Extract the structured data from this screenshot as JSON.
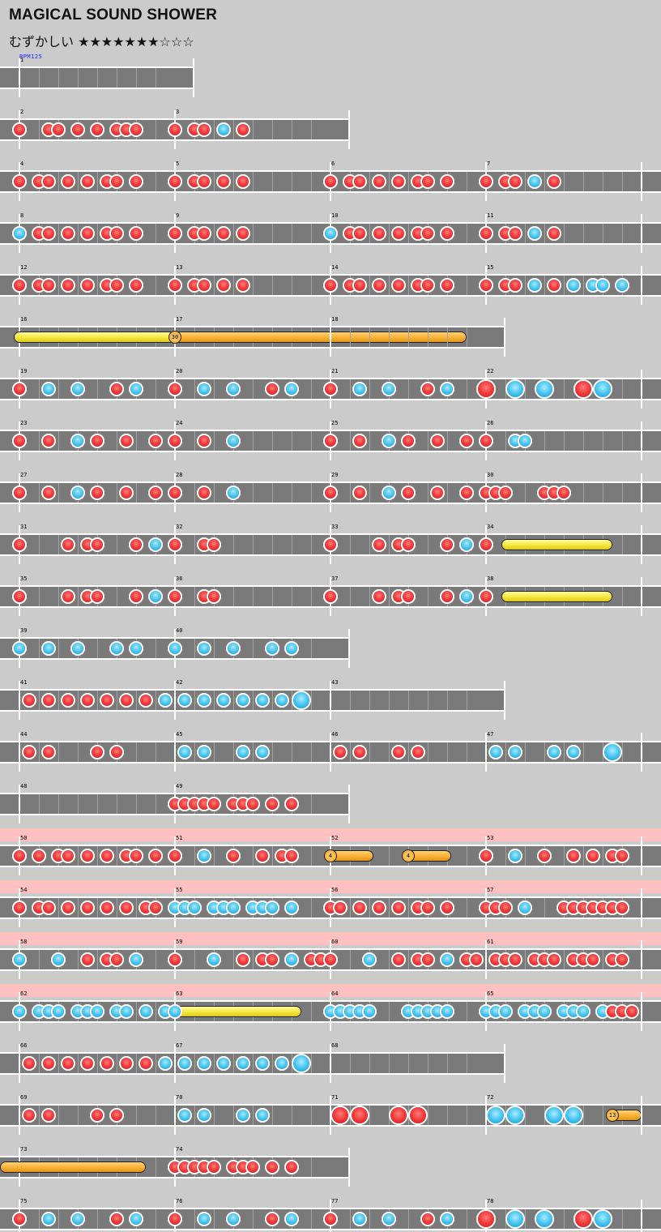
{
  "song": {
    "title": "MAGICAL SOUND SHOWER",
    "difficulty_label": "むずかしい",
    "stars": "★★★★★★★☆☆☆",
    "bpm": "BPM125"
  },
  "legend": {
    "don": "#f03a3a",
    "ka": "#40c0ef",
    "drumroll": "#f4e83a",
    "balloon": "#f9b233",
    "gogo_band": "#ffc0c0"
  },
  "measures": [
    {
      "n": 1,
      "beats": 4,
      "notes": []
    },
    {
      "n": 2,
      "beats": 8,
      "notes": "d0 d1.5 d2 d3 d4 d5 d5.5 d6"
    },
    {
      "n": 3,
      "beats": 8,
      "notes": "d0 d1 d1.5 k2.5 d3.5"
    },
    {
      "n": 4,
      "beats": 8,
      "notes": "d0 d1 d1.5 d2.5 d3.5 d4.5 d5 d6"
    },
    {
      "n": 5,
      "beats": 8,
      "notes": "d0 d1 d1.5 d2.5 d3.5"
    },
    {
      "n": 6,
      "beats": 8,
      "notes": "d0 d1 d1.5 d2.5 d3.5 d4.5 d5 d6"
    },
    {
      "n": 7,
      "beats": 8,
      "notes": "d0 d1 d1.5 k2.5 d3.5"
    },
    {
      "n": 8,
      "beats": 8,
      "notes": "k0 d1 d1.5 d2.5 d3.5 d4.5 d5 d6"
    },
    {
      "n": 9,
      "beats": 8,
      "notes": "d0 d1 d1.5 d2.5 d3.5"
    },
    {
      "n": 10,
      "beats": 8,
      "notes": "k0 d1 d1.5 d2.5 d3.5 d4.5 d5 d6"
    },
    {
      "n": 11,
      "beats": 8,
      "notes": "d0 d1 d1.5 k2.5 d3.5"
    },
    {
      "n": 12,
      "beats": 8,
      "notes": "d0 d1 d1.5 d2.5 d3.5 d4.5 d5 d6"
    },
    {
      "n": 13,
      "beats": 8,
      "notes": "d0 d1 d1.5 d2.5 d3.5"
    },
    {
      "n": 14,
      "beats": 8,
      "notes": "d0 d1 d1.5 d2.5 d3.5 d4.5 d5 d6"
    },
    {
      "n": 15,
      "beats": 8,
      "notes": "d0 d1 d1.5 k2.5 d3.5 k4.5 k5.5 k6 k7"
    },
    {
      "n": 16,
      "beats": 8,
      "rolls": [
        {
          "kind": "drumroll",
          "from": 0,
          "to": 7.7
        }
      ]
    },
    {
      "n": 17,
      "beats": 8,
      "balloon": {
        "at": 0,
        "hits": "30",
        "to": 15
      }
    },
    {
      "n": 18,
      "beats": 8
    },
    {
      "n": 19,
      "beats": 8,
      "notes": "d0 k1.5 k3 d5 k6"
    },
    {
      "n": 20,
      "beats": 8,
      "notes": "d0 k1.5 k3 d5 k6"
    },
    {
      "n": 21,
      "beats": 8,
      "notes": "d0 k1.5 k3 d5 k6"
    },
    {
      "n": 22,
      "beats": 8,
      "notes": "D0 K1.5 K3 D5 K6"
    },
    {
      "n": 23,
      "beats": 8,
      "notes": "d0 d1.5 k3 d4 d5.5 d7"
    },
    {
      "n": 24,
      "beats": 8,
      "notes": "d0 d1.5 k3"
    },
    {
      "n": 25,
      "beats": 8,
      "notes": "d0 d1.5 k3 d4 d5.5 d7"
    },
    {
      "n": 26,
      "beats": 8,
      "notes": "d0 k1.5 k2"
    },
    {
      "n": 27,
      "beats": 8,
      "notes": "d0 d1.5 k3 d4 d5.5 d7"
    },
    {
      "n": 28,
      "beats": 8,
      "notes": "d0 d1.5 k3"
    },
    {
      "n": 29,
      "beats": 8,
      "notes": "d0 d1.5 k3 d4 d5.5 d7"
    },
    {
      "n": 30,
      "beats": 8,
      "notes": "d0 d0.5 d1 d3 d3.5 d4"
    },
    {
      "n": 31,
      "beats": 8,
      "notes": "d0 d2.5 d3.5 d4 d6 k7"
    },
    {
      "n": 32,
      "beats": 8,
      "notes": "d0 d1.5 d2"
    },
    {
      "n": 33,
      "beats": 8,
      "notes": "d0 d2.5 d3.5 d4 d6 k7"
    },
    {
      "n": 34,
      "beats": 8,
      "notes": "d0",
      "rolls": [
        {
          "kind": "drumroll",
          "from": 1.1,
          "to": 6.2
        }
      ]
    },
    {
      "n": 35,
      "beats": 8,
      "notes": "d0 d2.5 d3.5 d4 d6 k7"
    },
    {
      "n": 36,
      "beats": 8,
      "notes": "d0 d1.5 d2"
    },
    {
      "n": 37,
      "beats": 8,
      "notes": "d0 d2.5 d3.5 d4 d6 k7"
    },
    {
      "n": 38,
      "beats": 8,
      "notes": "d0",
      "rolls": [
        {
          "kind": "drumroll",
          "from": 1.1,
          "to": 6.2
        }
      ]
    },
    {
      "n": 39,
      "beats": 8,
      "notes": "k0 k1.5 k3 k5 k6"
    },
    {
      "n": 40,
      "beats": 8,
      "notes": "k0 k1.5 k3 k5 k6"
    },
    {
      "n": 41,
      "beats": 8,
      "notes": "d0.5 d1.5 d2.5 d3.5 d4.5 d5.5 d6.5 k7.5"
    },
    {
      "n": 42,
      "beats": 8,
      "notes": "k0.5 k1.5 k2.5 k3.5 k4.5 k5.5 K6.5"
    },
    {
      "n": 43,
      "beats": 8
    },
    {
      "n": 44,
      "beats": 8,
      "notes": "d0.5 d1.5 d4 d5"
    },
    {
      "n": 45,
      "beats": 8,
      "notes": "k0.5 k1.5 k3.5 k4.5"
    },
    {
      "n": 46,
      "beats": 8,
      "notes": "d0.5 d1.5 d3.5 d4.5"
    },
    {
      "n": 47,
      "beats": 8,
      "notes": "k0.5 k1.5 k3.5 k4.5 K6.5"
    },
    {
      "n": 48,
      "beats": 8
    },
    {
      "n": 49,
      "beats": 8,
      "notes": "d0 d0.5 d1 d1.5 d2 d3 d3.5 d4 d5 d6"
    },
    {
      "n": 50,
      "beats": 8,
      "gogo": true,
      "notes": "d0 d1 d2 d2.5 d3.5 d4.5 d5.5 d6 d7"
    },
    {
      "n": 51,
      "beats": 8,
      "notes": "d0 k1.5 d3 d4.5 d5.5 d6"
    },
    {
      "n": 52,
      "beats": 8,
      "balloons": [
        {
          "at": 0,
          "hits": "4",
          "to": 2.2
        },
        {
          "at": 4,
          "hits": "4",
          "to": 6.2
        }
      ]
    },
    {
      "n": 53,
      "beats": 8,
      "notes": "d0 k1.5 d3 d4.5 d5.5 d6.5 d7"
    },
    {
      "n": 54,
      "beats": 8,
      "gogo": true,
      "notes": "d0 d1 d1.5 d2.5 d3.5 d4.5 d5.5 d6.5 d7"
    },
    {
      "n": 55,
      "beats": 8,
      "notes": "k0 k0.5 k1 k2 k2.5 k3 k4 k4.5 k5 k6"
    },
    {
      "n": 56,
      "beats": 8,
      "notes": "d0 d0.5 d1.5 d2.5 d3.5 d4.5 d5 d6"
    },
    {
      "n": 57,
      "beats": 8,
      "notes": "d0 d0.5 d1 k2 d4 d4.5 d5 d5.5 d6 d6.5 d7"
    },
    {
      "n": 58,
      "beats": 8,
      "gogo": true,
      "notes": "k0 k2 d3.5 d4.5 d5 k6"
    },
    {
      "n": 59,
      "beats": 8,
      "notes": "d0 k2 d3.5 d4.5 d5 k6 d7 d7.5"
    },
    {
      "n": 60,
      "beats": 8,
      "notes": "d0 k2 d3.5 d4.5 d5 k6 d7 d7.5"
    },
    {
      "n": 61,
      "beats": 8,
      "notes": "d0.5 d1 d1.5 d2.5 d3 d3.5 d4.5 d5 d5.5 d6.5 d7"
    },
    {
      "n": 62,
      "beats": 8,
      "gogo": true,
      "notes": "k0 k1 k1.5 k2 k3 k3.5 k4 k5 k5.5 k6.5 k7.5"
    },
    {
      "n": 63,
      "beats": 8,
      "notes": "k0",
      "rolls": [
        {
          "kind": "drumroll",
          "from": 0.1,
          "to": 6.2
        }
      ]
    },
    {
      "n": 64,
      "beats": 8,
      "notes": "k0 k0.5 k1 k1.5 k2 k4 k4.5 k5 k5.5 k6"
    },
    {
      "n": 65,
      "beats": 8,
      "notes": "k0 k0.5 k1 k2 k2.5 k3 k4 k4.5 k5 k6 d6.5 d7 d7.5"
    },
    {
      "n": 66,
      "beats": 8,
      "notes": "d0.5 d1.5 d2.5 d3.5 d4.5 d5.5 d6.5 k7.5"
    },
    {
      "n": 67,
      "beats": 8,
      "notes": "k0.5 k1.5 k2.5 k3.5 k4.5 k5.5 K6.5"
    },
    {
      "n": 68,
      "beats": 8
    },
    {
      "n": 69,
      "beats": 8,
      "notes": "d0.5 d1.5 d4 d5"
    },
    {
      "n": 70,
      "beats": 8,
      "notes": "k0.5 k1.5 k3.5 k4.5"
    },
    {
      "n": 71,
      "beats": 8,
      "notes": "D0.5 D1.5 D3.5 D4.5"
    },
    {
      "n": 72,
      "beats": 8,
      "notes": "K0.5 K1.5 K3.5 K4.5",
      "balloon": {
        "at": 6.5,
        "hits": "13",
        "to": 8
      }
    },
    {
      "n": 73,
      "beats": 8,
      "rolls": [
        {
          "kind": "balloon-tail",
          "from": -1,
          "to": 6.2
        }
      ]
    },
    {
      "n": 74,
      "beats": 8,
      "notes": "d0 d0.5 d1 d1.5 d2 d3 d3.5 d4 d5 d6"
    },
    {
      "n": 75,
      "beats": 8,
      "notes": "d0 k1.5 k3 d5 k6"
    },
    {
      "n": 76,
      "beats": 8,
      "notes": "d0 k1.5 k3 d5 k6"
    },
    {
      "n": 77,
      "beats": 8,
      "notes": "d0 k1.5 k3 d5 k6"
    },
    {
      "n": 78,
      "beats": 8,
      "notes": "D0 K1.5 K3 D5 K6"
    }
  ],
  "rows": [
    [
      1
    ],
    [
      2,
      3
    ],
    [
      4,
      5,
      6,
      7
    ],
    [
      8,
      9,
      10,
      11
    ],
    [
      12,
      13,
      14,
      15
    ],
    [
      16,
      17,
      18
    ],
    [
      19,
      20,
      21,
      22
    ],
    [
      23,
      24,
      25,
      26
    ],
    [
      27,
      28,
      29,
      30
    ],
    [
      31,
      32,
      33,
      34
    ],
    [
      35,
      36,
      37,
      38
    ],
    [
      39,
      40
    ],
    [
      41,
      42,
      43
    ],
    [
      44,
      45,
      46,
      47
    ],
    [
      48,
      49
    ],
    [
      50,
      51,
      52,
      53
    ],
    [
      54,
      55,
      56,
      57
    ],
    [
      58,
      59,
      60,
      61
    ],
    [
      62,
      63,
      64,
      65
    ],
    [
      66,
      67,
      68
    ],
    [
      69,
      70,
      71,
      72
    ],
    [
      73,
      74
    ],
    [
      75,
      76,
      77,
      78
    ]
  ]
}
